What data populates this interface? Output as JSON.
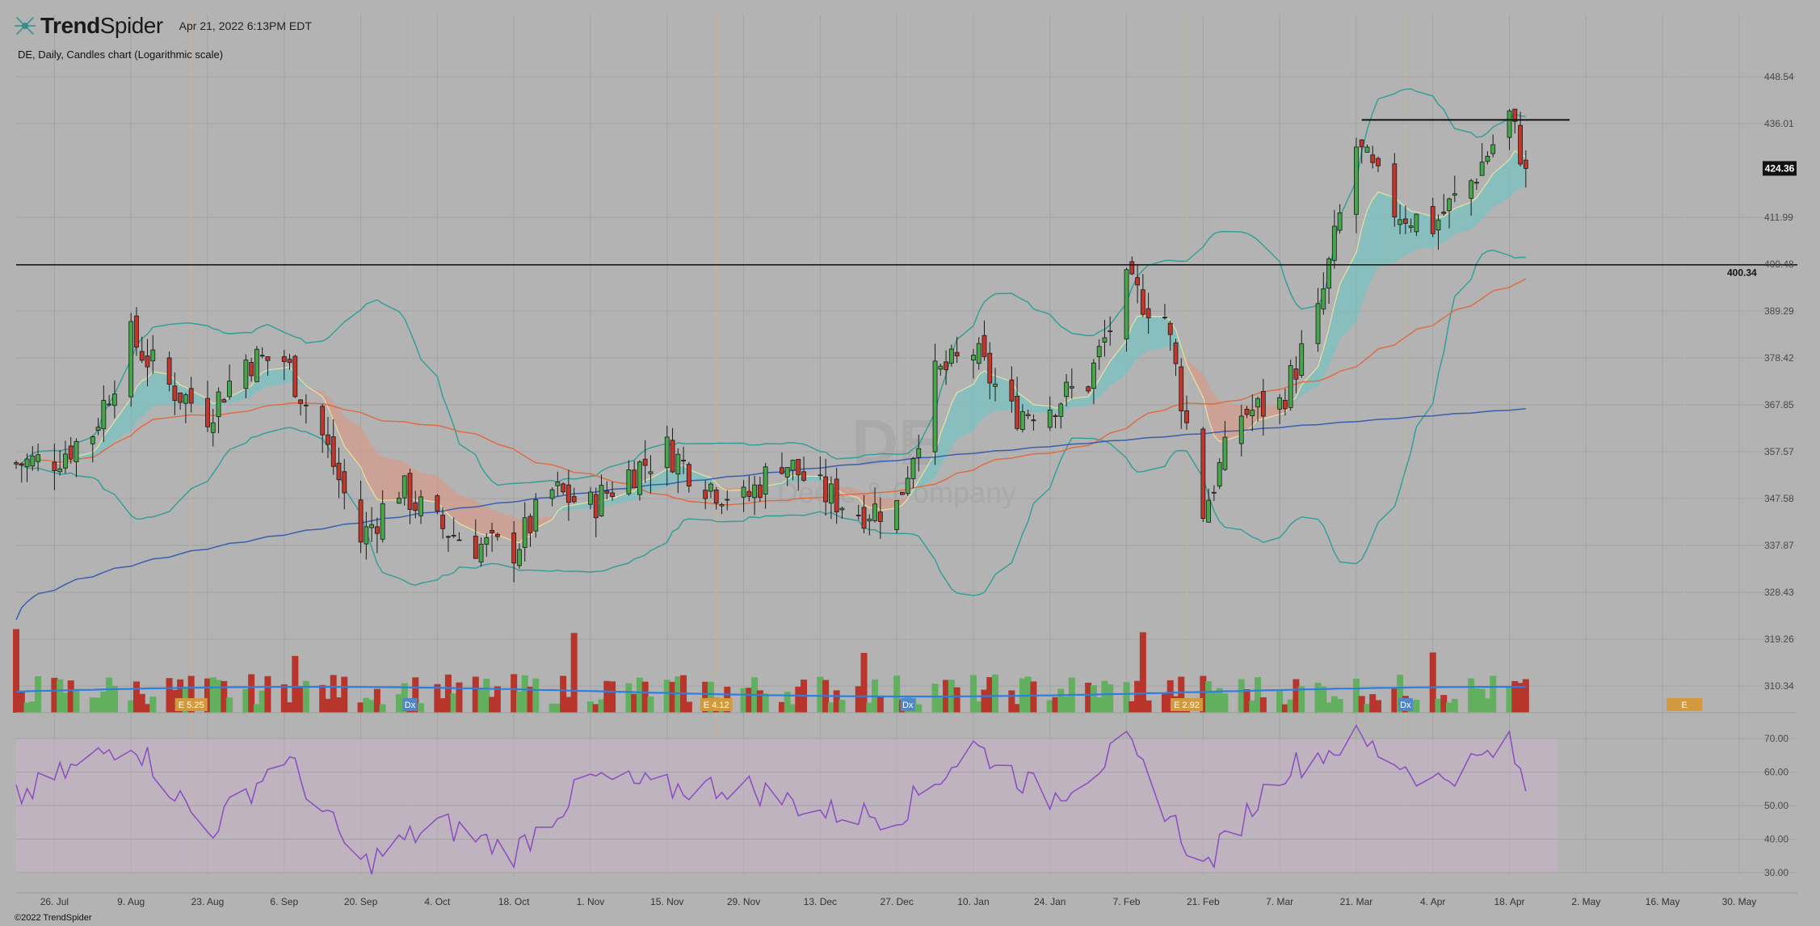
{
  "app": {
    "brand_prefix": "Trend",
    "brand_suffix": "Spider",
    "timestamp": "Apr 21, 2022 6:13PM EDT",
    "symbol_line": "DE, Daily, Candles chart (Logarithmic scale)",
    "copyright": "©2022 TrendSpider",
    "watermark_ticker": "DE",
    "watermark_company": "Deere & Company"
  },
  "colors": {
    "background": "#b3b3b3",
    "up": "#46a64a",
    "down": "#c2362b",
    "bollinger": "#2f9e96",
    "ema_cloud_up": "#7bc2c2",
    "ema_cloud_down": "#d49b8c",
    "sma50": "#e0693e",
    "sma200": "#3b5fae",
    "volume_ma": "#2d7ee0",
    "rsi": "#8a4cc2",
    "rsi_band": "#c9b3c9",
    "event_earnings": "#d39a3d",
    "event_dividend": "#4f87c7"
  },
  "chart_data": {
    "type": "candlestick",
    "title": "DE, Daily, Candles chart (Logarithmic scale)",
    "scale": "logarithmic",
    "price_axis_ticks": [
      448.54,
      436.01,
      411.99,
      400.48,
      389.29,
      378.42,
      367.85,
      357.57,
      347.58,
      337.87,
      328.43,
      319.26,
      310.34
    ],
    "last_price": "424.36",
    "horizontal_line": "400.34",
    "resistance_level": 437,
    "x_axis_ticks": [
      "26. Jul",
      "9. Aug",
      "23. Aug",
      "6. Sep",
      "20. Sep",
      "4. Oct",
      "18. Oct",
      "1. Nov",
      "15. Nov",
      "29. Nov",
      "13. Dec",
      "27. Dec",
      "10. Jan",
      "24. Jan",
      "7. Feb",
      "21. Feb",
      "7. Mar",
      "21. Mar",
      "4. Apr",
      "18. Apr",
      "2. May",
      "16. May",
      "30. May"
    ],
    "close_path_approx": [
      [
        "2021-07-19",
        355
      ],
      [
        "2021-07-26",
        356
      ],
      [
        "2021-08-02",
        362
      ],
      [
        "2021-08-09",
        383
      ],
      [
        "2021-08-16",
        372
      ],
      [
        "2021-08-23",
        366
      ],
      [
        "2021-08-30",
        378
      ],
      [
        "2021-09-06",
        378
      ],
      [
        "2021-09-13",
        361
      ],
      [
        "2021-09-20",
        339
      ],
      [
        "2021-09-27",
        350
      ],
      [
        "2021-10-04",
        342
      ],
      [
        "2021-10-11",
        338
      ],
      [
        "2021-10-18",
        337
      ],
      [
        "2021-10-25",
        349
      ],
      [
        "2021-11-01",
        346
      ],
      [
        "2021-11-08",
        353
      ],
      [
        "2021-11-15",
        358
      ],
      [
        "2021-11-22",
        351
      ],
      [
        "2021-11-29",
        347
      ],
      [
        "2021-12-06",
        356
      ],
      [
        "2021-12-13",
        349
      ],
      [
        "2021-12-20",
        345
      ],
      [
        "2021-12-27",
        346
      ],
      [
        "2022-01-03",
        374
      ],
      [
        "2022-01-10",
        380
      ],
      [
        "2022-01-17",
        366
      ],
      [
        "2022-01-24",
        368
      ],
      [
        "2022-01-31",
        373
      ],
      [
        "2022-02-07",
        395
      ],
      [
        "2022-02-14",
        388
      ],
      [
        "2022-02-21",
        345
      ],
      [
        "2022-02-28",
        366
      ],
      [
        "2022-03-07",
        368
      ],
      [
        "2022-03-14",
        388
      ],
      [
        "2022-03-21",
        430
      ],
      [
        "2022-03-28",
        414
      ],
      [
        "2022-04-04",
        410
      ],
      [
        "2022-04-11",
        421
      ],
      [
        "2022-04-18",
        438
      ],
      [
        "2022-04-21",
        424.36
      ]
    ],
    "indicators": [
      "Bollinger Bands",
      "EMA cloud",
      "SMA 50",
      "SMA 200",
      "Volume",
      "Volume MA",
      "RSI"
    ],
    "rsi_axis_ticks": [
      70,
      60,
      50,
      40,
      30
    ],
    "rsi_path_approx": [
      [
        "2021-07-19",
        52
      ],
      [
        "2021-08-09",
        70
      ],
      [
        "2021-08-23",
        42
      ],
      [
        "2021-09-06",
        65
      ],
      [
        "2021-09-20",
        32
      ],
      [
        "2021-10-04",
        45
      ],
      [
        "2021-10-18",
        36
      ],
      [
        "2021-11-01",
        58
      ],
      [
        "2021-11-15",
        55
      ],
      [
        "2021-11-29",
        56
      ],
      [
        "2021-12-13",
        48
      ],
      [
        "2021-12-27",
        47
      ],
      [
        "2022-01-10",
        68
      ],
      [
        "2022-01-24",
        52
      ],
      [
        "2022-02-07",
        68
      ],
      [
        "2022-02-21",
        31
      ],
      [
        "2022-03-07",
        60
      ],
      [
        "2022-03-21",
        70
      ],
      [
        "2022-04-04",
        57
      ],
      [
        "2022-04-18",
        68
      ],
      [
        "2022-04-21",
        55
      ]
    ],
    "events": [
      {
        "label": "E 5.25",
        "kind": "earnings",
        "date": "2021-08-20"
      },
      {
        "label": "Dx",
        "kind": "dividend",
        "date": "2021-09-29"
      },
      {
        "label": "E 4.12",
        "kind": "earnings",
        "date": "2021-11-24"
      },
      {
        "label": "Dx",
        "kind": "dividend",
        "date": "2021-12-29"
      },
      {
        "label": "E 2.92",
        "kind": "earnings",
        "date": "2022-02-18"
      },
      {
        "label": "Dx",
        "kind": "dividend",
        "date": "2022-03-30"
      },
      {
        "label": "E",
        "kind": "earnings",
        "date": "2022-05-20"
      }
    ]
  }
}
